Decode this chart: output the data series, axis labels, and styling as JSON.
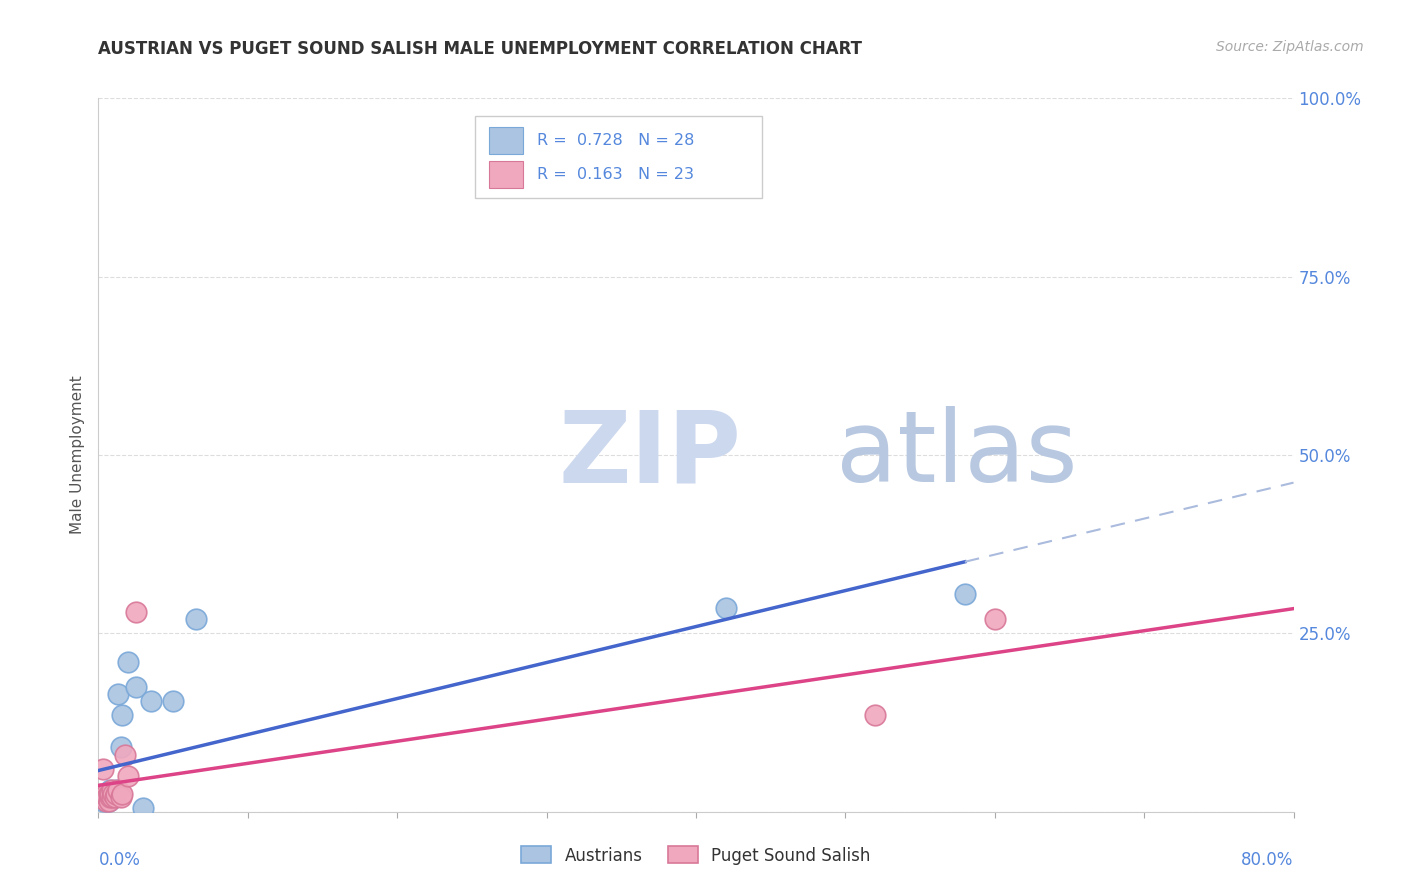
{
  "title": "AUSTRIAN VS PUGET SOUND SALISH MALE UNEMPLOYMENT CORRELATION CHART",
  "source": "Source: ZipAtlas.com",
  "ylabel": "Male Unemployment",
  "yticks": [
    0.0,
    0.25,
    0.5,
    0.75,
    1.0
  ],
  "ytick_labels": [
    "",
    "25.0%",
    "50.0%",
    "75.0%",
    "100.0%"
  ],
  "xlim": [
    0.0,
    0.8
  ],
  "ylim": [
    0.0,
    1.0
  ],
  "legend_r1": "0.728",
  "legend_n1": "28",
  "legend_r2": "0.163",
  "legend_n2": "23",
  "austrians_color": "#aac4e2",
  "austrians_edge_color": "#7aa8d8",
  "puget_color": "#f0a8be",
  "puget_edge_color": "#d87898",
  "trend_blue": "#4466cc",
  "trend_pink": "#dd4488",
  "trend_dashed_color": "#aabbdd",
  "watermark_zip_color": "#ccd8ee",
  "watermark_atlas_color": "#b8c8e0",
  "background_color": "#ffffff",
  "grid_color": "#dddddd",
  "right_axis_color": "#5588dd",
  "title_color": "#333333",
  "source_color": "#aaaaaa",
  "austrians_x": [
    0.002,
    0.003,
    0.003,
    0.004,
    0.005,
    0.005,
    0.006,
    0.006,
    0.007,
    0.007,
    0.008,
    0.008,
    0.009,
    0.009,
    0.01,
    0.011,
    0.012,
    0.013,
    0.015,
    0.016,
    0.02,
    0.025,
    0.03,
    0.035,
    0.05,
    0.065,
    0.42,
    0.58
  ],
  "austrians_y": [
    0.02,
    0.015,
    0.02,
    0.02,
    0.015,
    0.02,
    0.02,
    0.025,
    0.015,
    0.025,
    0.02,
    0.03,
    0.02,
    0.025,
    0.025,
    0.02,
    0.03,
    0.165,
    0.09,
    0.135,
    0.21,
    0.175,
    0.005,
    0.155,
    0.155,
    0.27,
    0.285,
    0.305
  ],
  "puget_x": [
    0.002,
    0.003,
    0.004,
    0.005,
    0.005,
    0.006,
    0.007,
    0.007,
    0.008,
    0.008,
    0.009,
    0.009,
    0.01,
    0.011,
    0.012,
    0.013,
    0.015,
    0.016,
    0.018,
    0.02,
    0.025,
    0.52,
    0.6
  ],
  "puget_y": [
    0.025,
    0.06,
    0.02,
    0.015,
    0.025,
    0.02,
    0.015,
    0.025,
    0.02,
    0.025,
    0.02,
    0.03,
    0.025,
    0.02,
    0.025,
    0.03,
    0.02,
    0.025,
    0.08,
    0.05,
    0.28,
    0.135,
    0.27
  ],
  "trend_blue_x_end": 0.65,
  "trend_solid_end": 0.58
}
